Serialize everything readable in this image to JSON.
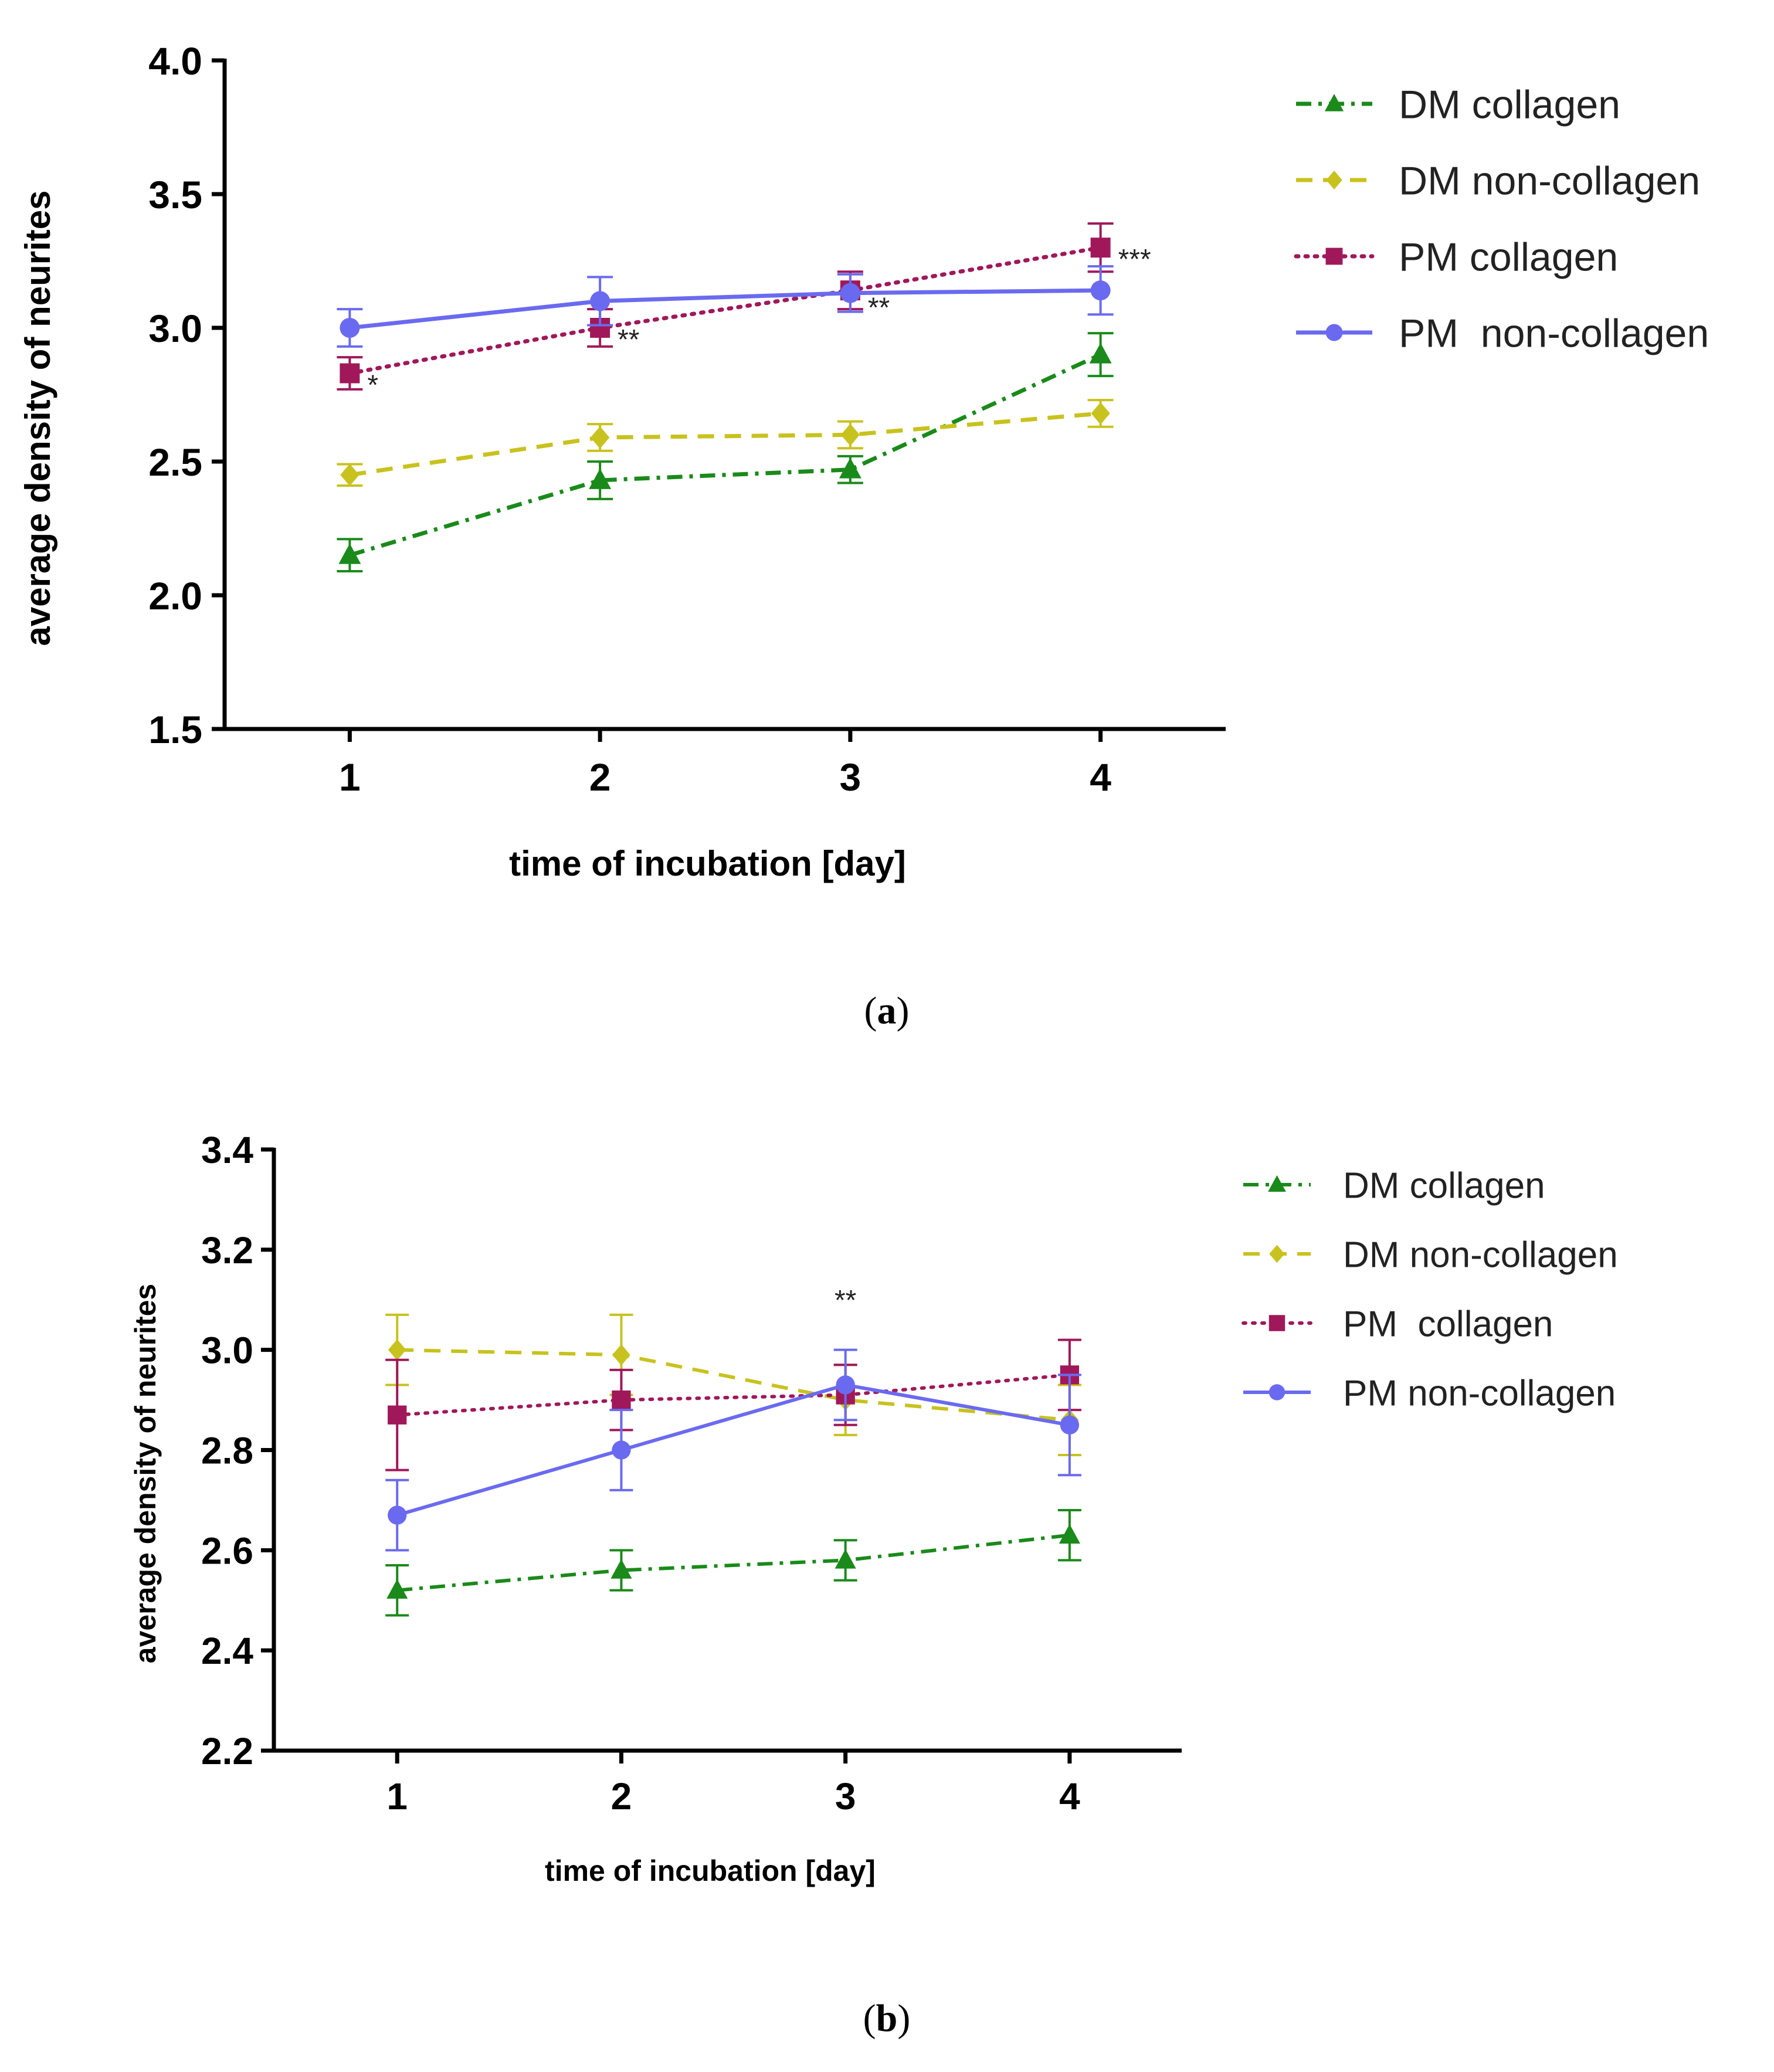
{
  "chart_data": [
    {
      "type": "line",
      "panel": "a",
      "caption": "(a)",
      "caption_prefix": "(",
      "caption_letter": "a",
      "caption_suffix": ")",
      "xlabel": "time of incubation [day]",
      "ylabel": "average density of neurites",
      "x": [
        1,
        2,
        3,
        4
      ],
      "x_tick_labels": [
        "1",
        "2",
        "3",
        "4"
      ],
      "xlim": [
        0.5,
        4.5
      ],
      "ylim": [
        1.5,
        4.0
      ],
      "y_ticks": [
        1.5,
        2.0,
        2.5,
        3.0,
        3.5,
        4.0
      ],
      "y_tick_labels": [
        "1.5",
        "2.0",
        "2.5",
        "3.0",
        "3.5",
        "4.0"
      ],
      "legend_position": "right",
      "series": [
        {
          "name": "DM collagen",
          "marker": "triangle",
          "line": "dash-dot",
          "color": "#1a8a1a",
          "values": [
            2.15,
            2.43,
            2.47,
            2.9
          ],
          "errors": [
            0.06,
            0.07,
            0.05,
            0.08
          ]
        },
        {
          "name": "DM non-collagen",
          "marker": "diamond",
          "line": "dashed",
          "color": "#c8c21e",
          "values": [
            2.45,
            2.59,
            2.6,
            2.68
          ],
          "errors": [
            0.04,
            0.05,
            0.05,
            0.05
          ]
        },
        {
          "name": "PM collagen",
          "marker": "square",
          "line": "dotted",
          "color": "#a0185a",
          "values": [
            2.83,
            3.0,
            3.14,
            3.3
          ],
          "errors": [
            0.06,
            0.07,
            0.07,
            0.09
          ]
        },
        {
          "name": "PM  non-collagen",
          "marker": "circle",
          "line": "solid",
          "color": "#6a6af0",
          "values": [
            3.0,
            3.1,
            3.13,
            3.14
          ],
          "errors": [
            0.07,
            0.09,
            0.07,
            0.09
          ]
        }
      ],
      "annotations": [
        {
          "text": "*",
          "x": 1,
          "y": 2.83
        },
        {
          "text": "**",
          "x": 2,
          "y": 3.0
        },
        {
          "text": "**",
          "x": 3,
          "y": 3.12
        },
        {
          "text": "***",
          "x": 4,
          "y": 3.3
        }
      ]
    },
    {
      "type": "line",
      "panel": "b",
      "caption": "(b)",
      "caption_prefix": "(",
      "caption_letter": "b",
      "caption_suffix": ")",
      "xlabel": "time of incubation [day]",
      "ylabel": "average density of neurites",
      "x": [
        1,
        2,
        3,
        4
      ],
      "x_tick_labels": [
        "1",
        "2",
        "3",
        "4"
      ],
      "xlim": [
        0.45,
        4.5
      ],
      "ylim": [
        2.2,
        3.4
      ],
      "y_ticks": [
        2.2,
        2.4,
        2.6,
        2.8,
        3.0,
        3.2,
        3.4
      ],
      "y_tick_labels": [
        "2.2",
        "2.4",
        "2.6",
        "2.8",
        "3.0",
        "3.2",
        "3.4"
      ],
      "legend_position": "right",
      "series": [
        {
          "name": "DM collagen",
          "marker": "triangle",
          "line": "dash-dot",
          "color": "#1a8a1a",
          "values": [
            2.52,
            2.56,
            2.58,
            2.63
          ],
          "errors": [
            0.05,
            0.04,
            0.04,
            0.05
          ]
        },
        {
          "name": "DM non-collagen",
          "marker": "diamond",
          "line": "dashed",
          "color": "#c8c21e",
          "values": [
            3.0,
            2.99,
            2.9,
            2.86
          ],
          "errors": [
            0.07,
            0.08,
            0.07,
            0.07
          ]
        },
        {
          "name": "PM  collagen",
          "marker": "square",
          "line": "dotted",
          "color": "#a0185a",
          "values": [
            2.87,
            2.9,
            2.91,
            2.95
          ],
          "errors": [
            0.11,
            0.06,
            0.06,
            0.07
          ]
        },
        {
          "name": "PM non-collagen",
          "marker": "circle",
          "line": "solid",
          "color": "#6a6af0",
          "values": [
            2.67,
            2.8,
            2.93,
            2.85
          ],
          "errors": [
            0.07,
            0.08,
            0.07,
            0.1
          ]
        }
      ],
      "annotations": [
        {
          "text": "**",
          "x": 3,
          "y": 3.01
        }
      ]
    }
  ]
}
